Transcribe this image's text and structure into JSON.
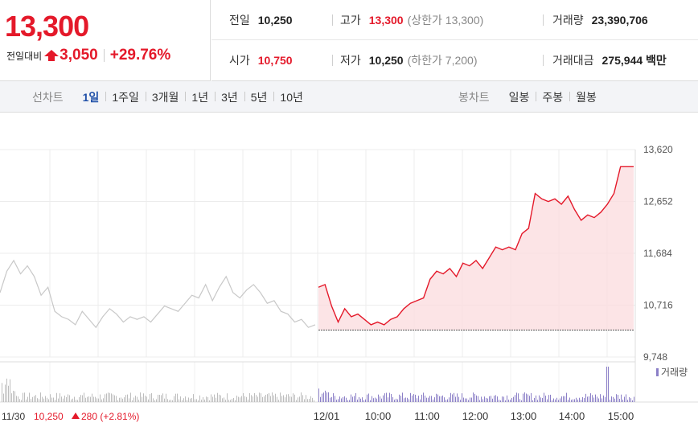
{
  "summary": {
    "price": "13,300",
    "change_label": "전일대비",
    "change_value": "3,050",
    "change_pct": "+29.76%",
    "direction_icon": "up-triangle-icon"
  },
  "info": {
    "prev_close_label": "전일",
    "prev_close": "10,250",
    "high_label": "고가",
    "high": "13,300",
    "upper_limit": "(상한가 13,300)",
    "volume_label": "거래량",
    "volume": "23,390,706",
    "open_label": "시가",
    "open": "10,750",
    "low_label": "저가",
    "low": "10,250",
    "lower_limit": "(하한가 7,200)",
    "turnover_label": "거래대금",
    "turnover": "275,944 백만"
  },
  "line_chart_periods": {
    "title": "선차트",
    "items": [
      "1일",
      "1주일",
      "3개월",
      "1년",
      "3년",
      "5년",
      "10년"
    ],
    "active": "1일"
  },
  "candle_chart_periods": {
    "title": "봉차트",
    "items": [
      "일봉",
      "주봉",
      "월봉"
    ]
  },
  "colors": {
    "up": "#e4192a",
    "active_tab": "#1f4fa8",
    "prev_day_line": "#c8c8c8",
    "volume_today": "#8b7fc7",
    "volume_prev": "#bdbdbd"
  },
  "chart_data": {
    "type": "line",
    "y_ticks": [
      "13,620",
      "12,652",
      "11,684",
      "10,716",
      "9,748"
    ],
    "ylim": [
      9748,
      13620
    ],
    "x_labels": [
      "11/30",
      "12/01",
      "10:00",
      "11:00",
      "12:00",
      "13:00",
      "14:00",
      "15:00"
    ],
    "prev_day_footer": {
      "date": "11/30",
      "close": "10,250",
      "change": "280",
      "pct": "(+2.81%)"
    },
    "volume_legend": "거래량",
    "series": [
      {
        "values": [
          10950,
          11350,
          11550,
          11300,
          11450,
          11250,
          10900,
          11050,
          10600,
          10500,
          10450,
          10350,
          10600,
          10450,
          10300,
          10500,
          10650,
          10550,
          10400,
          10500,
          10450,
          10500,
          10400,
          10550,
          10700,
          10650,
          10600,
          10750,
          10900,
          10850,
          11100,
          10800,
          11050,
          11250,
          10950,
          10850,
          11000,
          11100,
          10950,
          10750,
          10800,
          10600,
          10550,
          10400,
          10450,
          10300,
          10350
        ]
      },
      {
        "values": [
          11050,
          11100,
          10700,
          10400,
          10650,
          10500,
          10550,
          10450,
          10350,
          10400,
          10350,
          10450,
          10500,
          10650,
          10750,
          10800,
          10850,
          11200,
          11350,
          11300,
          11400,
          11250,
          11500,
          11450,
          11550,
          11400,
          11600,
          11800,
          11750,
          11800,
          11750,
          12050,
          12150,
          12800,
          12700,
          12650,
          12700,
          12600,
          12750,
          12500,
          12300,
          12400,
          12350,
          12450,
          12600,
          12800,
          13300,
          13300,
          13300
        ]
      }
    ],
    "baseline": 10250
  }
}
